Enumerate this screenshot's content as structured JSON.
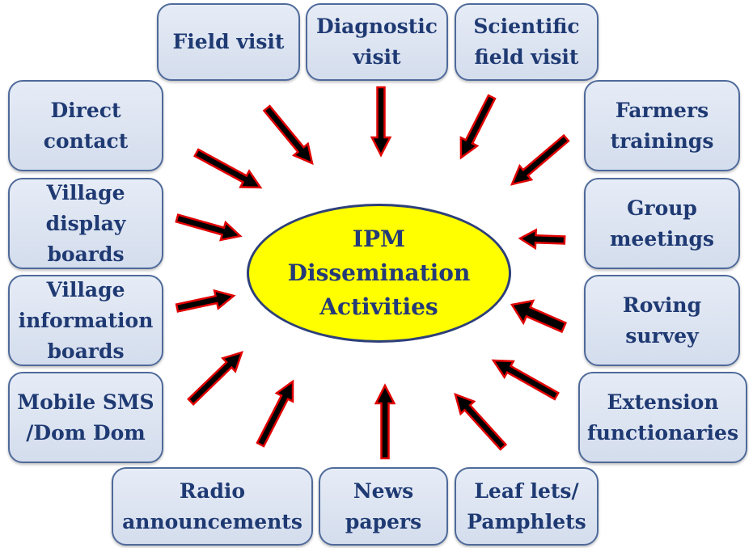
{
  "center": {
    "label": "IPM\nDissemination\nActivities"
  },
  "activities": {
    "field_visit": "Field visit",
    "diagnostic_visit": "Diagnostic\nvisit",
    "scientific_field_visit": "Scientific\nfield visit",
    "direct_contact": "Direct\ncontact",
    "farmers_trainings": "Farmers\ntrainings",
    "village_display_boards": "Village\ndisplay\nboards",
    "group_meetings": "Group\nmeetings",
    "village_information_boards": "Village\ninformation\nboards",
    "roving_survey": "Roving\nsurvey",
    "mobile_sms": "Mobile SMS\n/Dom Dom",
    "extension_functionaries": "Extension\nfunctionaries",
    "radio_announcements": "Radio\nannouncements",
    "news_papers": "News\npapers",
    "leaflets_pamphlets": "Leaf lets/\nPamphlets"
  },
  "colors": {
    "center_fill": "#ffff00",
    "node_fill": "#dce3f0",
    "node_border": "#4f6a9a",
    "text": "#1f3a73",
    "arrow_fill": "#000000",
    "arrow_outline": "#e00000"
  }
}
